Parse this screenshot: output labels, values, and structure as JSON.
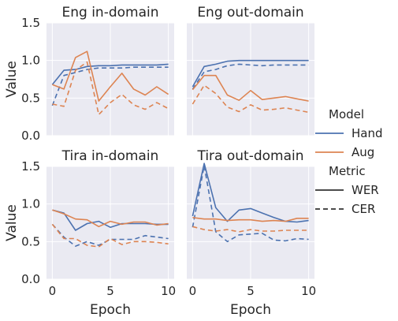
{
  "chart_data": {
    "type": "line",
    "ylabel": "Value",
    "xlabel": "Epoch",
    "xlim": [
      -0.5,
      10.5
    ],
    "ylim": [
      0,
      1.5
    ],
    "x_ticks": [
      "0",
      "5",
      "10"
    ],
    "y_ticks": [
      "0.0",
      "0.5",
      "1.0",
      "1.5"
    ],
    "grid": true,
    "legend": {
      "placement": "right",
      "model_title": "Model",
      "metric_title": "Metric",
      "models": [
        {
          "name": "Hand",
          "color": "#4c72b0"
        },
        {
          "name": "Aug",
          "color": "#dd8452"
        }
      ],
      "metrics": [
        {
          "name": "WER",
          "dash": "solid"
        },
        {
          "name": "CER",
          "dash": "dashed"
        }
      ]
    },
    "x": [
      0,
      1,
      2,
      3,
      4,
      5,
      6,
      7,
      8,
      9,
      10
    ],
    "panels": [
      {
        "title": "Eng in-domain",
        "series": [
          {
            "model": "Hand",
            "metric": "WER",
            "values": [
              0.68,
              0.87,
              0.88,
              0.92,
              0.93,
              0.93,
              0.94,
              0.94,
              0.94,
              0.94,
              0.95
            ]
          },
          {
            "model": "Hand",
            "metric": "CER",
            "values": [
              0.4,
              0.8,
              0.84,
              0.88,
              0.9,
              0.9,
              0.9,
              0.91,
              0.91,
              0.91,
              0.91
            ]
          },
          {
            "model": "Aug",
            "metric": "WER",
            "values": [
              0.68,
              0.62,
              1.04,
              1.12,
              0.46,
              0.65,
              0.83,
              0.62,
              0.54,
              0.65,
              0.55
            ]
          },
          {
            "model": "Aug",
            "metric": "CER",
            "values": [
              0.42,
              0.39,
              0.87,
              0.98,
              0.28,
              0.44,
              0.55,
              0.41,
              0.35,
              0.44,
              0.36
            ]
          }
        ]
      },
      {
        "title": "Eng out-domain",
        "series": [
          {
            "model": "Hand",
            "metric": "WER",
            "values": [
              0.65,
              0.92,
              0.95,
              0.99,
              1.0,
              1.0,
              1.0,
              1.0,
              1.0,
              1.0,
              1.0
            ]
          },
          {
            "model": "Hand",
            "metric": "CER",
            "values": [
              0.62,
              0.85,
              0.88,
              0.93,
              0.95,
              0.94,
              0.93,
              0.94,
              0.94,
              0.94,
              0.94
            ]
          },
          {
            "model": "Aug",
            "metric": "WER",
            "values": [
              0.61,
              0.8,
              0.8,
              0.54,
              0.47,
              0.6,
              0.48,
              0.5,
              0.52,
              0.49,
              0.46
            ]
          },
          {
            "model": "Aug",
            "metric": "CER",
            "values": [
              0.42,
              0.67,
              0.56,
              0.38,
              0.32,
              0.41,
              0.34,
              0.35,
              0.37,
              0.34,
              0.31
            ]
          }
        ]
      },
      {
        "title": "Tira in-domain",
        "series": [
          {
            "model": "Hand",
            "metric": "WER",
            "values": [
              0.92,
              0.88,
              0.65,
              0.74,
              0.77,
              0.69,
              0.74,
              0.74,
              0.74,
              0.73,
              0.73
            ]
          },
          {
            "model": "Hand",
            "metric": "CER",
            "values": [
              0.73,
              0.56,
              0.44,
              0.5,
              0.45,
              0.53,
              0.53,
              0.53,
              0.58,
              0.56,
              0.54
            ]
          },
          {
            "model": "Aug",
            "metric": "WER",
            "values": [
              0.92,
              0.87,
              0.8,
              0.79,
              0.7,
              0.77,
              0.73,
              0.76,
              0.76,
              0.72,
              0.74
            ]
          },
          {
            "model": "Aug",
            "metric": "CER",
            "values": [
              0.73,
              0.54,
              0.54,
              0.45,
              0.43,
              0.54,
              0.46,
              0.5,
              0.5,
              0.49,
              0.47
            ]
          }
        ]
      },
      {
        "title": "Tira out-domain",
        "series": [
          {
            "model": "Hand",
            "metric": "WER",
            "values": [
              0.84,
              1.54,
              0.95,
              0.77,
              0.92,
              0.94,
              0.88,
              0.82,
              0.77,
              0.76,
              0.78
            ]
          },
          {
            "model": "Hand",
            "metric": "CER",
            "values": [
              0.69,
              1.51,
              0.63,
              0.5,
              0.59,
              0.6,
              0.61,
              0.52,
              0.51,
              0.54,
              0.53
            ]
          },
          {
            "model": "Aug",
            "metric": "WER",
            "values": [
              0.82,
              0.8,
              0.8,
              0.78,
              0.79,
              0.79,
              0.77,
              0.78,
              0.77,
              0.81,
              0.81
            ]
          },
          {
            "model": "Aug",
            "metric": "CER",
            "values": [
              0.7,
              0.66,
              0.64,
              0.66,
              0.63,
              0.66,
              0.64,
              0.64,
              0.65,
              0.65,
              0.65
            ]
          }
        ]
      }
    ]
  }
}
